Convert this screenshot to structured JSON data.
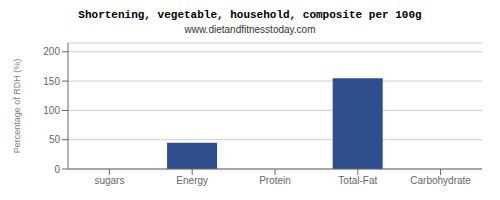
{
  "chart_data": {
    "type": "bar",
    "title": "Shortening, vegetable, household, composite per 100g",
    "subtitle": "www.dietandfitnesstoday.com",
    "categories": [
      "sugars",
      "Energy",
      "Protein",
      "Total-Fat",
      "Carbohydrate"
    ],
    "values": [
      0,
      45,
      0,
      155,
      0
    ],
    "color": "#2d4f8e",
    "ylabel": "Percentage of RDH (%)",
    "ylim": [
      0,
      215
    ],
    "yticks": [
      0,
      50,
      100,
      150,
      200
    ],
    "grid": true
  }
}
